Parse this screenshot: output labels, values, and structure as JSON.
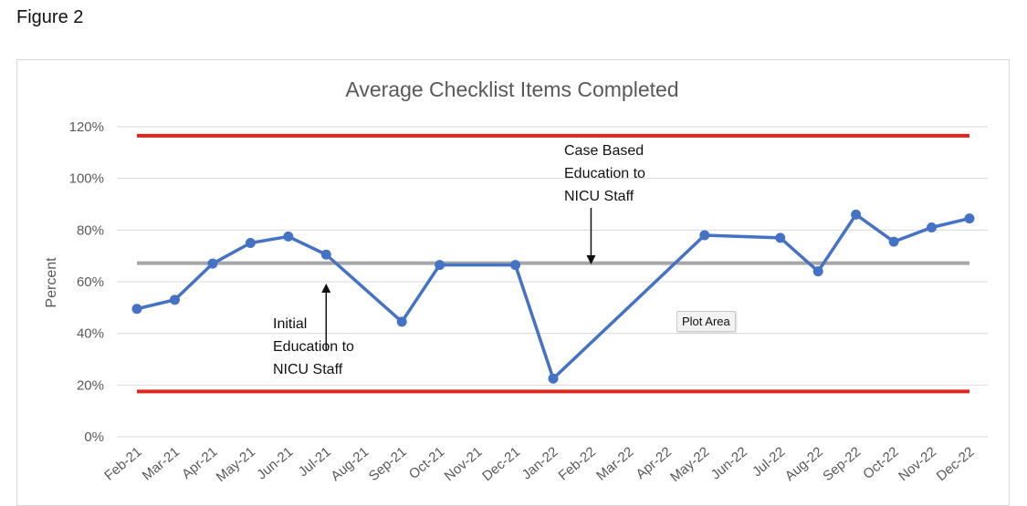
{
  "figure_label": "Figure 2",
  "tooltip": "Plot Area",
  "chart_data": {
    "type": "line",
    "title": "Average Checklist Items Completed",
    "ylabel": "Percent",
    "xlabel": "",
    "ylim": [
      0,
      120
    ],
    "yticks": [
      "0%",
      "20%",
      "40%",
      "60%",
      "80%",
      "100%",
      "120%"
    ],
    "categories": [
      "Feb-21",
      "Mar-21",
      "Apr-21",
      "May-21",
      "Jun-21",
      "Jul-21",
      "Aug-21",
      "Sep-21",
      "Oct-21",
      "Nov-21",
      "Dec-21",
      "Jan-22",
      "Feb-22",
      "Mar-22",
      "Apr-22",
      "May-22",
      "Jun-22",
      "Jul-22",
      "Aug-22",
      "Sep-22",
      "Oct-22",
      "Nov-22",
      "Dec-22"
    ],
    "series": [
      {
        "values": [
          49.5,
          53,
          67,
          75,
          77.5,
          70.5,
          null,
          44.5,
          66.5,
          null,
          66.5,
          22.5,
          null,
          null,
          null,
          78,
          null,
          77,
          64,
          86,
          75.5,
          81,
          84.5
        ],
        "color": "#4472c4"
      }
    ],
    "reference_lines": [
      {
        "value": 116.5,
        "color": "#e0261c"
      },
      {
        "value": 67.2,
        "color": "#a6a6a6"
      },
      {
        "value": 17.5,
        "color": "#e0261c"
      }
    ],
    "annotations": [
      {
        "lines": [
          "Initial",
          "Education to",
          "NICU Staff"
        ],
        "arrow_category": "Jul-21",
        "arrow_direction": "up"
      },
      {
        "lines": [
          "Case Based",
          "Education to",
          "NICU Staff"
        ],
        "arrow_category": "Feb-22",
        "arrow_direction": "down"
      }
    ],
    "grid": true
  }
}
